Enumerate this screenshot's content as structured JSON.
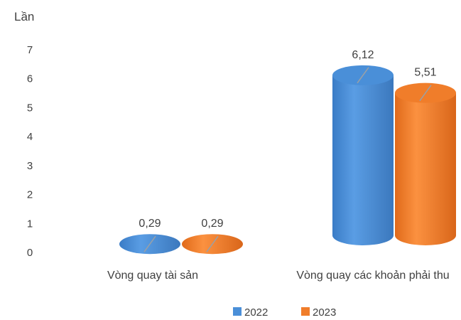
{
  "chart_data": {
    "type": "bar",
    "ylabel": "Lần",
    "ylim": [
      0,
      7
    ],
    "yticks": [
      "0",
      "1",
      "2",
      "3",
      "4",
      "5",
      "6",
      "7"
    ],
    "categories": [
      "Vòng quay tài sản",
      "Vòng quay các khoản phải thu"
    ],
    "series": [
      {
        "name": "2022",
        "values": [
          0.29,
          6.12
        ],
        "labels": [
          "0,29",
          "6,12"
        ],
        "color": "#4a8fd8"
      },
      {
        "name": "2023",
        "values": [
          0.29,
          5.51
        ],
        "labels": [
          "0,29",
          "5,51"
        ],
        "color": "#f07d2a"
      }
    ],
    "grid": false,
    "legend_position": "bottom"
  }
}
